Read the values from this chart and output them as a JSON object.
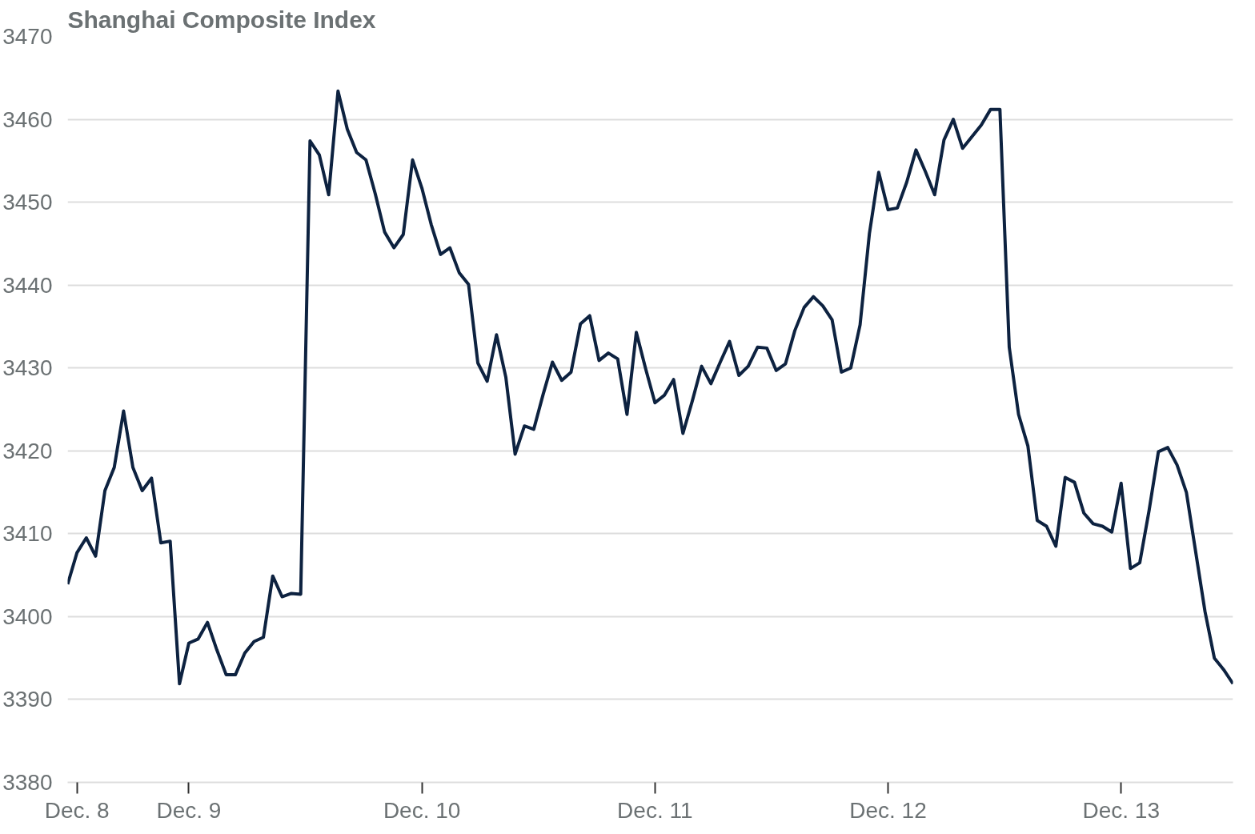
{
  "chart_data": {
    "type": "line",
    "title": "Shanghai Composite Index",
    "categories": [
      null,
      "Dec. 8",
      null,
      null,
      null,
      null,
      null,
      null,
      null,
      null,
      null,
      null,
      null,
      "Dec. 9",
      null,
      null,
      null,
      null,
      null,
      null,
      null,
      null,
      null,
      null,
      null,
      null,
      null,
      null,
      null,
      null,
      null,
      null,
      null,
      null,
      null,
      null,
      null,
      null,
      "Dec. 10",
      null,
      null,
      null,
      null,
      null,
      null,
      null,
      null,
      null,
      null,
      null,
      null,
      null,
      null,
      null,
      null,
      null,
      null,
      null,
      null,
      null,
      null,
      null,
      null,
      "Dec. 11",
      null,
      null,
      null,
      null,
      null,
      null,
      null,
      null,
      null,
      null,
      null,
      null,
      null,
      null,
      null,
      null,
      null,
      null,
      null,
      null,
      null,
      null,
      null,
      null,
      "Dec. 12",
      null,
      null,
      null,
      null,
      null,
      null,
      null,
      null,
      null,
      null,
      null,
      null,
      null,
      null,
      null,
      null,
      null,
      null,
      null,
      null,
      null,
      null,
      null,
      null,
      "Dec. 13",
      null,
      null,
      null,
      null,
      null,
      null,
      null,
      null,
      null,
      null,
      null,
      null
    ],
    "series": [
      {
        "color": "#0d2240",
        "values": [
          3403.9,
          3407.7,
          3409.5,
          3407.3,
          3415.2,
          3418.0,
          3424.8,
          3418.0,
          3415.2,
          3416.7,
          3408.9,
          3409.1,
          3391.9,
          3396.8,
          3397.3,
          3399.3,
          3396.0,
          3393.0,
          3393.0,
          3395.6,
          3397.0,
          3397.5,
          3404.9,
          3402.4,
          3402.8,
          3402.7,
          3457.4,
          3455.7,
          3450.9,
          3463.4,
          3458.8,
          3456.0,
          3455.1,
          3451.0,
          3446.4,
          3444.5,
          3446.1,
          3455.1,
          3451.7,
          3447.3,
          3443.7,
          3444.5,
          3441.5,
          3440.1,
          3430.6,
          3428.4,
          3434.0,
          3428.9,
          3419.6,
          3423.0,
          3422.6,
          3426.8,
          3430.7,
          3428.5,
          3429.5,
          3435.3,
          3436.3,
          3430.9,
          3431.8,
          3431.1,
          3424.4,
          3434.3,
          3429.9,
          3425.8,
          3426.7,
          3428.6,
          3422.1,
          3426.0,
          3430.2,
          3428.1,
          3430.7,
          3433.2,
          3429.1,
          3430.2,
          3432.5,
          3432.4,
          3429.7,
          3430.5,
          3434.5,
          3437.3,
          3438.6,
          3437.5,
          3435.8,
          3429.5,
          3430.0,
          3435.2,
          3446.2,
          3453.6,
          3449.1,
          3449.3,
          3452.4,
          3456.3,
          3453.7,
          3450.9,
          3457.5,
          3460.0,
          3456.5,
          3457.9,
          3459.3,
          3461.2,
          3461.2,
          3432.5,
          3424.4,
          3420.6,
          3411.6,
          3410.9,
          3408.5,
          3416.8,
          3416.2,
          3412.5,
          3411.2,
          3410.9,
          3410.2,
          3416.1,
          3405.8,
          3406.5,
          3412.8,
          3419.9,
          3420.4,
          3418.3,
          3415.0,
          3407.8,
          3400.6,
          3395.0,
          3393.6,
          3391.9
        ]
      }
    ],
    "ylim": [
      3380,
      3470
    ],
    "yticks": [
      3380,
      3390,
      3400,
      3410,
      3420,
      3430,
      3440,
      3450,
      3460,
      3470
    ],
    "grid": "y",
    "marker": "none",
    "line_style": "solid"
  }
}
